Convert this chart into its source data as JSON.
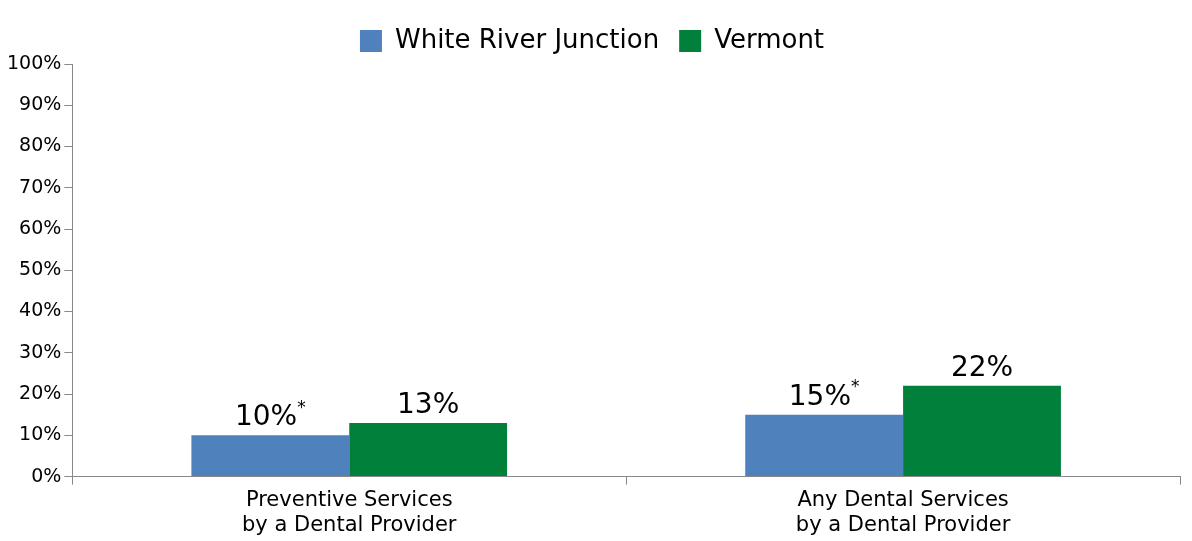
{
  "chart_data": {
    "type": "bar",
    "categories": [
      "Preventive Services\nby a Dental Provider",
      "Any Dental Services\nby a Dental Provider"
    ],
    "series": [
      {
        "name": "White River Junction",
        "color": "#4f81bd",
        "values": [
          10,
          15
        ],
        "value_labels": [
          "10%$^{*}$",
          "15%$^{*}$"
        ]
      },
      {
        "name": "Vermont",
        "color": "#00803a",
        "values": [
          13,
          22
        ],
        "value_labels": [
          "13%",
          "22%"
        ]
      }
    ],
    "ylim": [
      0,
      100
    ],
    "yticks": [
      {
        "value": 0,
        "label": "0%"
      },
      {
        "value": 10,
        "label": "10%"
      },
      {
        "value": 20,
        "label": "20%"
      },
      {
        "value": 30,
        "label": "30%"
      },
      {
        "value": 40,
        "label": "40%"
      },
      {
        "value": 50,
        "label": "50%"
      },
      {
        "value": 60,
        "label": "60%"
      },
      {
        "value": 70,
        "label": "70%"
      },
      {
        "value": 80,
        "label": "80%"
      },
      {
        "value": 90,
        "label": "90%"
      },
      {
        "value": 100,
        "label": "100%"
      }
    ],
    "grid": false,
    "legend": "top"
  }
}
